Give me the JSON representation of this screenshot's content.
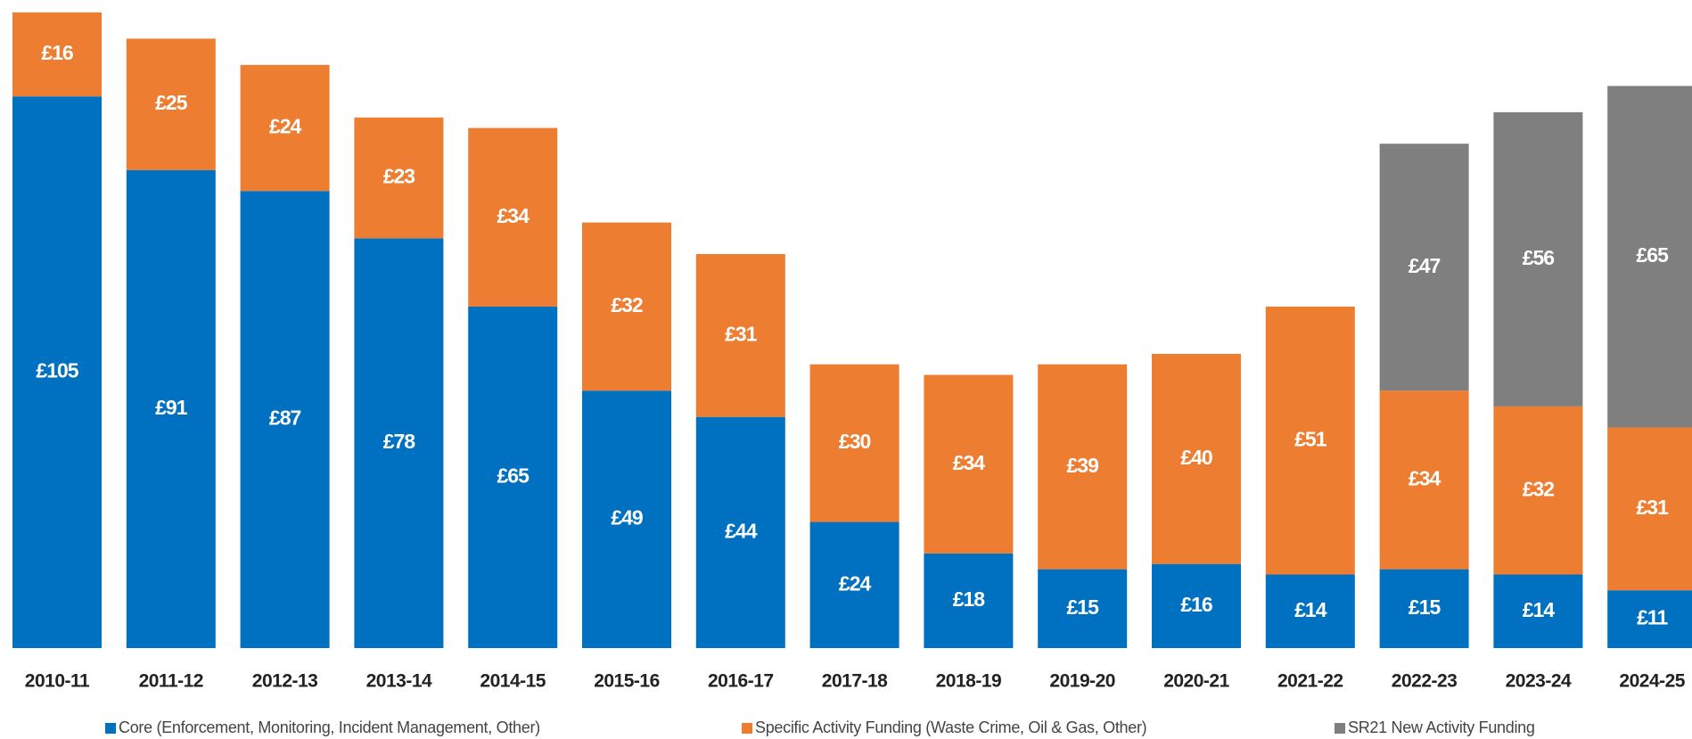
{
  "chart_data": {
    "type": "stacked_bar",
    "categories": [
      "2010-11",
      "2011-12",
      "2012-13",
      "2013-14",
      "2014-15",
      "2015-16",
      "2016-17",
      "2017-18",
      "2018-19",
      "2019-20",
      "2020-21",
      "2021-22",
      "2022-23",
      "2023-24",
      "2024-25"
    ],
    "series": [
      {
        "name": "Core (Enforcement, Monitoring, Incident Management, Other)",
        "color": "#0070c0",
        "values": [
          105,
          91,
          87,
          78,
          65,
          49,
          44,
          24,
          18,
          15,
          16,
          14,
          15,
          14,
          11
        ],
        "value_labels": [
          "£105",
          "£91",
          "£87",
          "£78",
          "£65",
          "£49",
          "£44",
          "£24",
          "£18",
          "£15",
          "£16",
          "£14",
          "£15",
          "£14",
          "£11"
        ]
      },
      {
        "name": "Specific Activity Funding (Waste Crime, Oil & Gas, Other)",
        "color": "#ed7d31",
        "values": [
          16,
          25,
          24,
          23,
          34,
          32,
          31,
          30,
          34,
          39,
          40,
          51,
          34,
          32,
          31
        ],
        "value_labels": [
          "£16",
          "£25",
          "£24",
          "£23",
          "£34",
          "£32",
          "£31",
          "£30",
          "£34",
          "£39",
          "£40",
          "£51",
          "£34",
          "£32",
          "£31"
        ]
      },
      {
        "name": "SR21 New Activity Funding",
        "color": "#7f7f7f",
        "values": [
          null,
          null,
          null,
          null,
          null,
          null,
          null,
          null,
          null,
          null,
          null,
          null,
          47,
          56,
          65
        ],
        "value_labels": [
          null,
          null,
          null,
          null,
          null,
          null,
          null,
          null,
          null,
          null,
          null,
          null,
          "£47",
          "£56",
          "£65"
        ]
      }
    ],
    "ylim": [
      0,
      122
    ],
    "legend": "bottom"
  }
}
